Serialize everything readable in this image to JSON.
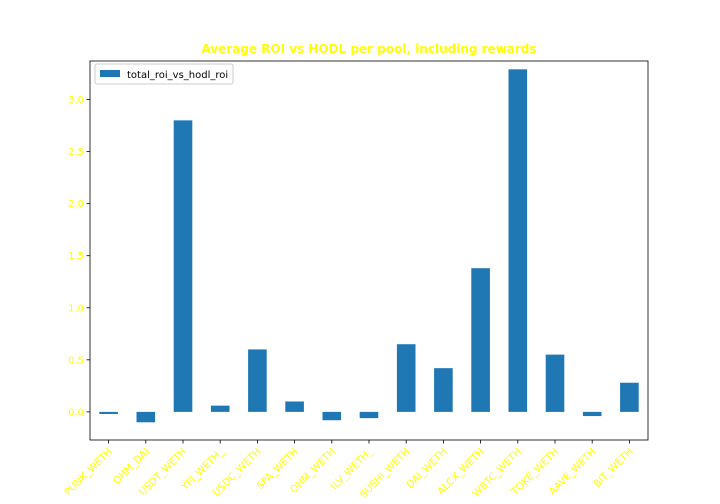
{
  "chart_data": {
    "type": "bar",
    "title": "Average ROI vs HODL per pool, including rewards",
    "xlabel": "",
    "ylabel": "",
    "categories": [
      "PUNK_WETH",
      "OHM_DAI",
      "USDT_WETH",
      "YFI_WETH",
      "USDC_WETH",
      "SPA_WETH",
      "OHM_WETH",
      "ILV_WETH",
      "SUSHI_WETH",
      "DAI_WETH",
      "ALCX_WETH",
      "WBTC_WETH",
      "TOKE_WETH",
      "AAVE_WETH",
      "BIT_WETH"
    ],
    "tick_labels": [
      "PUNK_WETH",
      "OHM_DAI",
      "USDT_WETH",
      "YFI_WETH_",
      "USDC_WETH",
      "SPA_WETH",
      "OHM_WETH",
      "ILV_WETH_",
      "SUSHI_WETH",
      "DAI_WETH",
      "ALCX_WETH",
      "WBTC_WETH",
      "TOKE_WETH",
      "AAVE_WETH",
      "BIT_WETH"
    ],
    "series": [
      {
        "name": "total_roi_vs_hodl_roi",
        "values": [
          -0.02,
          -0.1,
          2.8,
          0.06,
          0.6,
          0.1,
          -0.08,
          -0.06,
          0.65,
          0.42,
          1.38,
          3.29,
          0.55,
          -0.04,
          0.28
        ]
      }
    ],
    "yticks": [
      0.0,
      0.5,
      1.0,
      1.5,
      2.0,
      2.5,
      3.0
    ],
    "ytick_labels": [
      "0.0",
      "0.5",
      "1.0",
      "1.5",
      "2.0",
      "2.5",
      "3.0"
    ],
    "ylim": [
      -0.27,
      3.37
    ],
    "grid": false,
    "legend_placement": "top-left",
    "colors": {
      "bar": "#1f77b4",
      "title": "#ffff00",
      "ticks": "#ffff00",
      "axes": "#000000"
    }
  }
}
